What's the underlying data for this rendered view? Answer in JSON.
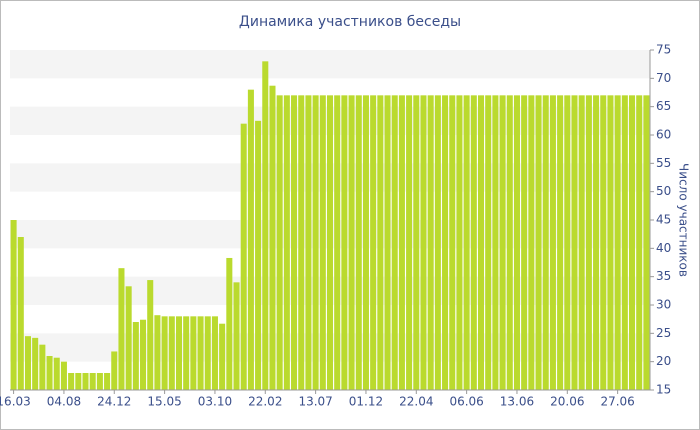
{
  "chart_data": {
    "type": "bar",
    "title": "Динамика участников беседы",
    "y_label": "Число участников",
    "categories": [
      "16.03",
      null,
      null,
      null,
      null,
      null,
      null,
      "04.08",
      null,
      null,
      null,
      null,
      null,
      null,
      "24.12",
      null,
      null,
      null,
      null,
      null,
      null,
      "15.05",
      null,
      null,
      null,
      null,
      null,
      null,
      "03.10",
      null,
      null,
      null,
      null,
      null,
      null,
      "22.02",
      null,
      null,
      null,
      null,
      null,
      null,
      "13.07",
      null,
      null,
      null,
      null,
      null,
      null,
      "01.12",
      null,
      null,
      null,
      null,
      null,
      null,
      "22.04",
      null,
      null,
      null,
      null,
      null,
      null,
      "06.06",
      null,
      null,
      null,
      null,
      null,
      null,
      "13.06",
      null,
      null,
      null,
      null,
      null,
      null,
      "20.06",
      null,
      null,
      null,
      null,
      null,
      null,
      "27.06",
      null,
      null,
      null,
      null
    ],
    "values": [
      45,
      42,
      24.5,
      24.2,
      23,
      21,
      20.7,
      20,
      18,
      18,
      18,
      18,
      18,
      18,
      21.8,
      36.5,
      33.3,
      27,
      27.4,
      34.4,
      28.2,
      28,
      28,
      28,
      28,
      28,
      28,
      28,
      28,
      26.7,
      38.3,
      34,
      62,
      68,
      62.5,
      73,
      68.7,
      67,
      67,
      67,
      67,
      67,
      67,
      67,
      67,
      67,
      67,
      67,
      67,
      67,
      67,
      67,
      67,
      67,
      67,
      67,
      67,
      67,
      67,
      67,
      67,
      67,
      67,
      67,
      67,
      67,
      67,
      67,
      67,
      67,
      67,
      67,
      67,
      67,
      67,
      67,
      67,
      67,
      67,
      67,
      67,
      67,
      67,
      67,
      67,
      67,
      67,
      67,
      67
    ],
    "color": "#bada2e",
    "ylim": [
      15,
      75
    ],
    "yticks": [
      15,
      20,
      25,
      30,
      35,
      40,
      45,
      50,
      55,
      60,
      65,
      70,
      75
    ],
    "grid": true,
    "y_axis_side": "right"
  }
}
